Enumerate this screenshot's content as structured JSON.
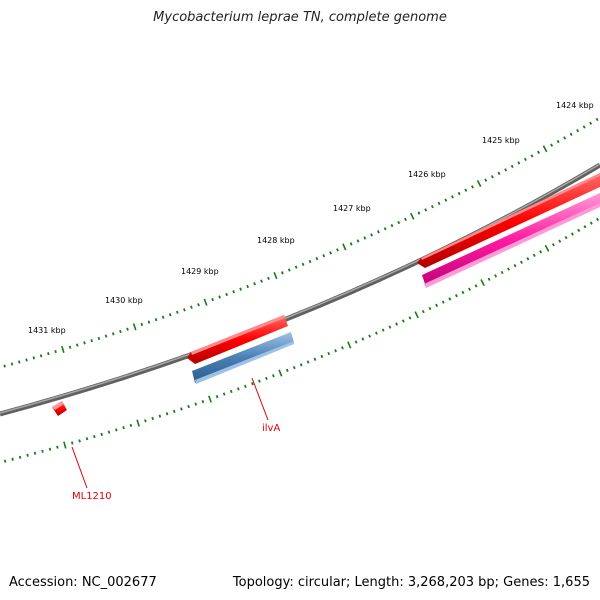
{
  "title": "Mycobacterium leprae TN, complete genome",
  "footer": {
    "accession": "Accession: NC_002677",
    "summary": "Topology: circular; Length: 3,268,203 bp; Genes: 1,655"
  },
  "scale_labels": [
    "1424 kbp",
    "1425 kbp",
    "1426 kbp",
    "1427 kbp",
    "1428 kbp",
    "1429 kbp",
    "1430 kbp",
    "1431 kbp"
  ],
  "gene_labels": [
    "ilvA",
    "ML1210"
  ],
  "colors": {
    "backbone": "#808080",
    "ticks": "#1a7a1a",
    "gene_forward": "#ff0000",
    "gene_reverse_blue": "#4a7fb5",
    "gene_reverse_pink": "#ff1aa0",
    "label_text": "#e00000",
    "leader_line": "#e00000"
  }
}
